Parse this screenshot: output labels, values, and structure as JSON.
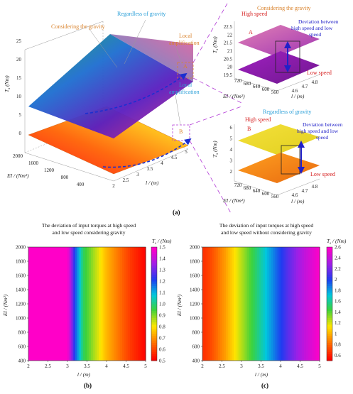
{
  "figure": {
    "caption_a": "(a)",
    "caption_b": "(b)",
    "caption_c": "(c)"
  },
  "panel_a": {
    "annotations": {
      "considering_gravity": "Considering the gravity",
      "regardless_of_gravity": "Regardless of gravity",
      "local_amplification_1": "Local",
      "local_amplification_1b": "amplification",
      "local_amplification_2": "Local",
      "local_amplification_2b": "amplification",
      "marker_a": "A",
      "marker_b": "B"
    },
    "main_axes": {
      "y_label": "T",
      "y_sub": "s",
      "y_unit": " (Nm)",
      "y_ticks": [
        "0",
        "5",
        "10",
        "15",
        "20",
        "25"
      ],
      "ei_label": "EI / (Nm²)",
      "ei_ticks": [
        "2000",
        "1600",
        "1200",
        "800",
        "400"
      ],
      "l_label": "l / (m)",
      "l_ticks": [
        "2",
        "2.5",
        "3",
        "3.5",
        "4",
        "4.5",
        "5"
      ]
    },
    "inset_top": {
      "title": "Considering the gravity",
      "high_speed": "High speed",
      "low_speed": "Low speed",
      "deviation_1": "Deviation between",
      "deviation_2": "high speed and low",
      "deviation_3": "speed",
      "marker": "A",
      "y_ticks": [
        "19.5",
        "20",
        "20.5",
        "21",
        "21.5",
        "22",
        "22.5"
      ],
      "y_label": "T",
      "y_sub": "s",
      "y_unit": " (Nm)",
      "ei_ticks": [
        "720",
        "680",
        "640",
        "600",
        "560"
      ],
      "ei_label": "EI / (Nm²)",
      "l_ticks": [
        "4.6",
        "4.7",
        "4.8"
      ],
      "l_label": "l / (m)"
    },
    "inset_bottom": {
      "title": "Regardless of gravity",
      "high_speed": "High speed",
      "low_speed": "Low speed",
      "deviation_1": "Deviation between",
      "deviation_2": "high speed and low",
      "deviation_3": "speed",
      "marker": "B",
      "y_ticks": [
        "2",
        "3",
        "4",
        "5",
        "6"
      ],
      "y_label": "T",
      "y_sub": "s",
      "y_unit": " (Nm)",
      "ei_ticks": [
        "720",
        "680",
        "640",
        "600",
        "560"
      ],
      "ei_label": "EI / (Nm²)",
      "l_ticks": [
        "4.6",
        "4.7",
        "4.8"
      ],
      "l_label": "l / (m)"
    }
  },
  "colors": {
    "orange_annot": "#d9822b",
    "blue_annot": "#2a9fd8",
    "red_annot": "#d62020",
    "navy_annot": "#2121c8",
    "dash_purple": "#b23ad6",
    "dash_blue": "#1a2fd0"
  },
  "chart_data": [
    {
      "type": "heatmap",
      "title_line1": "The deviation of input torques at high speed",
      "title_line2": "and low speed considering gravity",
      "xlabel": "l / (m)",
      "ylabel": "EI / (Nm²)",
      "colorbar_label": "T",
      "colorbar_sub": "s",
      "colorbar_unit": " / (Nm)",
      "xlim": [
        2,
        5
      ],
      "ylim": [
        400,
        2000
      ],
      "x_ticks": [
        "2",
        "2.5",
        "3",
        "3.5",
        "4",
        "4.5",
        "5"
      ],
      "y_ticks": [
        "400",
        "600",
        "800",
        "1000",
        "1200",
        "1400",
        "1600",
        "1800",
        "2000"
      ],
      "colorbar_range": [
        0.5,
        1.5
      ],
      "colorbar_ticks": [
        "0.5",
        "0.6",
        "0.7",
        "0.8",
        "0.9",
        "1.0",
        "1.1",
        "1.2",
        "1.3",
        "1.4",
        "1.5"
      ],
      "x": [
        1.8,
        3.0,
        3.2,
        3.4,
        3.6,
        3.8,
        4.0,
        4.3,
        4.6,
        5.0
      ],
      "values": [
        1.5,
        1.5,
        1.2,
        0.98,
        0.9,
        0.82,
        0.74,
        0.66,
        0.58,
        0.5
      ]
    },
    {
      "type": "heatmap",
      "title_line1": "The deviation of input torques at high speed",
      "title_line2": "and low speed without considering gravity",
      "xlabel": "l / (m)",
      "ylabel": "EI / (Nm²)",
      "colorbar_label": "T",
      "colorbar_sub": "s",
      "colorbar_unit": " / (Nm)",
      "xlim": [
        2,
        5
      ],
      "ylim": [
        400,
        2000
      ],
      "x_ticks": [
        "2",
        "2.5",
        "3",
        "3.5",
        "4",
        "4.5",
        "5"
      ],
      "y_ticks": [
        "400",
        "600",
        "800",
        "1000",
        "1200",
        "1400",
        "1600",
        "1800",
        "2000"
      ],
      "colorbar_range": [
        0.5,
        2.6
      ],
      "colorbar_ticks": [
        "0.6",
        "0.8",
        "1",
        "1.2",
        "1.4",
        "1.6",
        "1.8",
        "2",
        "2.2",
        "2.4",
        "2.6"
      ],
      "x": [
        1.8,
        2.2,
        2.6,
        3.0,
        3.4,
        3.8,
        4.2,
        4.6,
        5.0
      ],
      "values": [
        0.55,
        0.7,
        0.95,
        1.25,
        1.55,
        1.85,
        2.15,
        2.4,
        2.6
      ]
    }
  ]
}
